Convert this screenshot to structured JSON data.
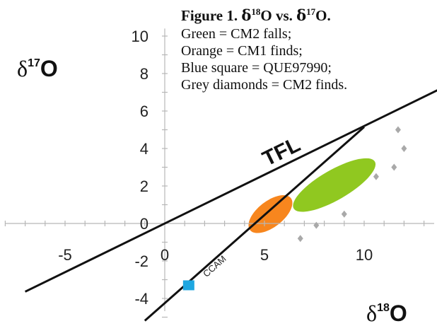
{
  "legend": {
    "title_prefix": "Figure 1.",
    "delta": "δ",
    "sup18": "18",
    "sup17": "17",
    "o1": "O vs.",
    "o2": "O.",
    "items": [
      "Green = CM2 falls;",
      "Orange = CM1 finds;",
      "Blue square = QUE97990;",
      "Grey diamonds = CM2 finds."
    ]
  },
  "axes": {
    "y_title": {
      "delta": "δ",
      "sup": "17",
      "letter": "O"
    },
    "x_title": {
      "delta": "δ",
      "sup": "18",
      "letter": "O"
    }
  },
  "chart_data": {
    "type": "scatter",
    "x_range": [
      -8,
      14
    ],
    "y_range": [
      -5,
      10.5
    ],
    "x_ticks": [
      -5,
      0,
      5,
      10
    ],
    "y_ticks": [
      -4,
      -2,
      0,
      2,
      4,
      6,
      8,
      10
    ],
    "x_tick_labels": [
      "-5",
      "0",
      "5",
      "10"
    ],
    "y_tick_labels": [
      "-4",
      "-2",
      "0",
      "2",
      "4",
      "6",
      "8",
      "10"
    ],
    "grid": false,
    "reference_lines": [
      {
        "name": "TFL",
        "slope": 0.52,
        "intercept": 0,
        "x": [
          -7,
          14
        ]
      },
      {
        "name": "CCAM",
        "slope": 0.94,
        "intercept": -4.25,
        "x": [
          -1,
          10
        ]
      }
    ],
    "regions": [
      {
        "series": "CM1 finds",
        "shape": "ellipse",
        "center": [
          5.3,
          0.5
        ],
        "half_axes": [
          1.3,
          0.65
        ],
        "angle_deg": 38,
        "color": "#f7861e"
      },
      {
        "series": "CM2 falls",
        "shape": "ellipse",
        "center": [
          8.5,
          2.05
        ],
        "half_axes": [
          2.35,
          0.75
        ],
        "angle_deg": 30,
        "color": "#90c820"
      }
    ],
    "series": [
      {
        "name": "QUE97990",
        "marker": "square",
        "color": "#1ea7e1",
        "points": [
          [
            1.2,
            -3.3
          ]
        ]
      },
      {
        "name": "CM2 finds",
        "marker": "diamond",
        "color": "#a9a9a9",
        "points": [
          [
            11.7,
            5.0
          ],
          [
            12.0,
            4.0
          ],
          [
            11.5,
            3.0
          ],
          [
            10.6,
            2.5
          ],
          [
            9.0,
            0.5
          ],
          [
            7.6,
            -0.1
          ],
          [
            6.8,
            -0.8
          ]
        ]
      }
    ]
  }
}
